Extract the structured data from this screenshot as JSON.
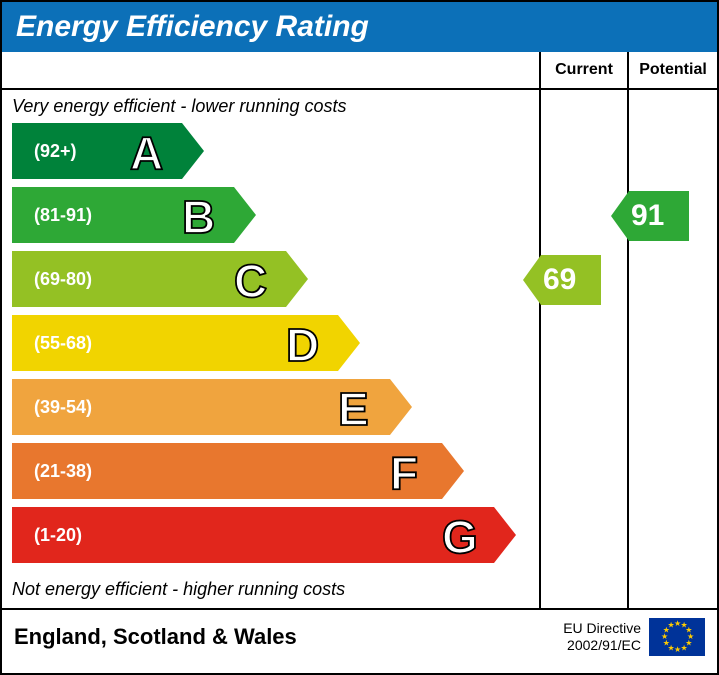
{
  "title": "Energy Efficiency Rating",
  "title_bg": "#0c70b8",
  "title_color": "#ffffff",
  "columns": {
    "current": "Current",
    "potential": "Potential"
  },
  "captions": {
    "top": "Very energy efficient - lower running costs",
    "bottom": "Not energy efficient - higher running costs"
  },
  "band_base_width": 170,
  "band_step_width": 52,
  "band_height": 56,
  "band_gap": 8,
  "letter_font_size": 46,
  "letter_stroke": "#000000",
  "letter_fill": "#ffffff",
  "range_font_size": 18,
  "bands": [
    {
      "letter": "A",
      "range": "(92+)",
      "color": "#00823a",
      "text": "#ffffff"
    },
    {
      "letter": "B",
      "range": "(81-91)",
      "color": "#2ea836",
      "text": "#ffffff"
    },
    {
      "letter": "C",
      "range": "(69-80)",
      "color": "#94c124",
      "text": "#ffffff"
    },
    {
      "letter": "D",
      "range": "(55-68)",
      "color": "#f1d400",
      "text": "#ffffff"
    },
    {
      "letter": "E",
      "range": "(39-54)",
      "color": "#f0a43e",
      "text": "#ffffff"
    },
    {
      "letter": "F",
      "range": "(21-38)",
      "color": "#e8772e",
      "text": "#ffffff"
    },
    {
      "letter": "G",
      "range": "(1-20)",
      "color": "#e1261c",
      "text": "#ffffff"
    }
  ],
  "ratings": {
    "current": {
      "value": "69",
      "band_index": 2,
      "color": "#94c124"
    },
    "potential": {
      "value": "91",
      "band_index": 1,
      "color": "#2ea836"
    }
  },
  "arrow": {
    "width": 78,
    "height": 50,
    "notch": 18,
    "font_size": 30,
    "text_color": "#ffffff"
  },
  "footer": {
    "region": "England, Scotland & Wales",
    "directive_line1": "EU Directive",
    "directive_line2": "2002/91/EC",
    "flag_bg": "#003399",
    "star_color": "#ffcc00"
  }
}
